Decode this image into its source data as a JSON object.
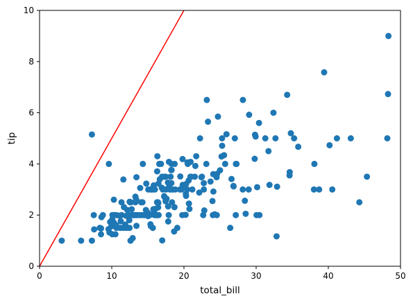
{
  "chart_data": {
    "type": "scatter",
    "xlabel": "total_bill",
    "ylabel": "tip",
    "xlim": [
      0,
      50
    ],
    "ylim": [
      0,
      10
    ],
    "x_ticks": [
      0,
      10,
      20,
      30,
      40,
      50
    ],
    "y_ticks": [
      0,
      2,
      4,
      6,
      8,
      10
    ],
    "grid": false,
    "point_color": "#1f77b4",
    "reference_line": {
      "slope": 0.5,
      "intercept": 0,
      "color": "#ff0000"
    },
    "series": [
      {
        "points": [
          [
            3.07,
            1.0
          ],
          [
            5.75,
            1.0
          ],
          [
            7.25,
            1.0
          ],
          [
            7.25,
            5.15
          ],
          [
            7.51,
            2.0
          ],
          [
            7.56,
            1.44
          ],
          [
            8.35,
            1.5
          ],
          [
            8.51,
            1.25
          ],
          [
            8.52,
            1.48
          ],
          [
            8.58,
            1.92
          ],
          [
            8.77,
            2.0
          ],
          [
            9.55,
            1.45
          ],
          [
            9.6,
            4.0
          ],
          [
            9.68,
            1.32
          ],
          [
            9.78,
            1.73
          ],
          [
            9.94,
            1.56
          ],
          [
            10.07,
            1.83
          ],
          [
            10.07,
            1.25
          ],
          [
            10.09,
            2.0
          ],
          [
            10.27,
            1.71
          ],
          [
            10.29,
            2.6
          ],
          [
            10.33,
            1.67
          ],
          [
            10.33,
            2.0
          ],
          [
            10.34,
            1.66
          ],
          [
            10.34,
            2.0
          ],
          [
            10.51,
            1.25
          ],
          [
            10.59,
            1.61
          ],
          [
            10.63,
            2.0
          ],
          [
            10.65,
            1.5
          ],
          [
            11.02,
            1.98
          ],
          [
            11.17,
            1.5
          ],
          [
            11.24,
            1.76
          ],
          [
            11.35,
            2.5
          ],
          [
            11.38,
            2.0
          ],
          [
            11.59,
            1.5
          ],
          [
            11.61,
            3.39
          ],
          [
            11.69,
            2.31
          ],
          [
            11.87,
            1.63
          ],
          [
            12.02,
            1.97
          ],
          [
            12.03,
            1.5
          ],
          [
            12.16,
            2.2
          ],
          [
            12.26,
            2.0
          ],
          [
            12.43,
            1.8
          ],
          [
            12.46,
            1.5
          ],
          [
            12.48,
            2.52
          ],
          [
            12.54,
            2.5
          ],
          [
            12.6,
            1.0
          ],
          [
            12.66,
            2.5
          ],
          [
            12.69,
            2.0
          ],
          [
            12.74,
            2.01
          ],
          [
            12.76,
            2.23
          ],
          [
            12.9,
            1.1
          ],
          [
            13.0,
            2.0
          ],
          [
            13.03,
            2.0
          ],
          [
            13.13,
            2.0
          ],
          [
            13.27,
            2.5
          ],
          [
            13.28,
            2.72
          ],
          [
            13.37,
            2.0
          ],
          [
            13.39,
            2.61
          ],
          [
            13.42,
            3.48
          ],
          [
            13.42,
            1.58
          ],
          [
            13.51,
            2.0
          ],
          [
            13.81,
            2.0
          ],
          [
            13.94,
            3.06
          ],
          [
            14.07,
            2.5
          ],
          [
            14.15,
            2.0
          ],
          [
            14.26,
            2.5
          ],
          [
            14.31,
            4.0
          ],
          [
            14.48,
            2.0
          ],
          [
            14.52,
            2.0
          ],
          [
            14.73,
            2.2
          ],
          [
            14.78,
            3.23
          ],
          [
            15.01,
            2.09
          ],
          [
            15.04,
            1.96
          ],
          [
            15.06,
            3.0
          ],
          [
            15.36,
            1.64
          ],
          [
            15.38,
            3.0
          ],
          [
            15.42,
            1.57
          ],
          [
            15.48,
            2.02
          ],
          [
            15.53,
            3.0
          ],
          [
            15.69,
            3.0
          ],
          [
            15.69,
            1.5
          ],
          [
            15.77,
            2.23
          ],
          [
            15.81,
            3.16
          ],
          [
            15.95,
            2.0
          ],
          [
            15.98,
            2.03
          ],
          [
            15.98,
            3.0
          ],
          [
            16.0,
            2.0
          ],
          [
            16.04,
            2.24
          ],
          [
            16.21,
            2.0
          ],
          [
            16.27,
            2.5
          ],
          [
            16.29,
            3.71
          ],
          [
            16.31,
            2.0
          ],
          [
            16.32,
            4.3
          ],
          [
            16.4,
            2.5
          ],
          [
            16.43,
            2.3
          ],
          [
            16.45,
            2.47
          ],
          [
            16.47,
            3.23
          ],
          [
            16.49,
            2.0
          ],
          [
            16.58,
            4.0
          ],
          [
            16.66,
            3.4
          ],
          [
            16.82,
            4.0
          ],
          [
            16.93,
            3.07
          ],
          [
            16.97,
            3.5
          ],
          [
            16.99,
            1.01
          ],
          [
            17.07,
            3.0
          ],
          [
            17.26,
            2.74
          ],
          [
            17.29,
            2.71
          ],
          [
            17.31,
            3.5
          ],
          [
            17.46,
            2.54
          ],
          [
            17.47,
            3.5
          ],
          [
            17.51,
            3.0
          ],
          [
            17.59,
            2.64
          ],
          [
            17.78,
            3.27
          ],
          [
            17.81,
            2.34
          ],
          [
            17.82,
            1.75
          ],
          [
            17.89,
            2.0
          ],
          [
            17.92,
            4.08
          ],
          [
            17.92,
            3.08
          ],
          [
            18.04,
            3.0
          ],
          [
            18.15,
            3.5
          ],
          [
            18.24,
            3.76
          ],
          [
            18.26,
            3.25
          ],
          [
            18.28,
            4.0
          ],
          [
            18.29,
            3.76
          ],
          [
            18.29,
            3.0
          ],
          [
            18.35,
            2.5
          ],
          [
            18.43,
            3.0
          ],
          [
            18.64,
            1.36
          ],
          [
            18.69,
            2.31
          ],
          [
            18.71,
            4.0
          ],
          [
            18.78,
            3.0
          ],
          [
            19.08,
            1.5
          ],
          [
            19.44,
            3.0
          ],
          [
            19.49,
            3.51
          ],
          [
            19.65,
            3.0
          ],
          [
            19.77,
            2.0
          ],
          [
            19.81,
            4.19
          ],
          [
            19.82,
            3.18
          ],
          [
            20.08,
            3.15
          ],
          [
            20.23,
            2.01
          ],
          [
            20.27,
            2.83
          ],
          [
            20.29,
            2.75
          ],
          [
            20.29,
            3.21
          ],
          [
            20.45,
            3.0
          ],
          [
            20.49,
            4.06
          ],
          [
            20.53,
            4.0
          ],
          [
            20.65,
            3.35
          ],
          [
            20.69,
            2.45
          ],
          [
            20.76,
            2.24
          ],
          [
            20.9,
            3.5
          ],
          [
            20.92,
            4.08
          ],
          [
            21.01,
            3.5
          ],
          [
            21.16,
            3.0
          ],
          [
            21.5,
            3.5
          ],
          [
            21.58,
            3.92
          ],
          [
            21.7,
            4.3
          ],
          [
            22.12,
            2.88
          ],
          [
            22.23,
            5.0
          ],
          [
            22.42,
            3.48
          ],
          [
            22.49,
            3.5
          ],
          [
            22.67,
            2.0
          ],
          [
            22.75,
            3.25
          ],
          [
            22.76,
            3.0
          ],
          [
            22.82,
            2.18
          ],
          [
            23.1,
            4.0
          ],
          [
            23.17,
            6.5
          ],
          [
            23.33,
            5.65
          ],
          [
            23.68,
            3.31
          ],
          [
            23.95,
            2.55
          ],
          [
            24.01,
            2.0
          ],
          [
            24.06,
            3.6
          ],
          [
            24.08,
            2.92
          ],
          [
            24.27,
            2.03
          ],
          [
            24.52,
            3.48
          ],
          [
            24.55,
            2.0
          ],
          [
            24.59,
            3.61
          ],
          [
            24.71,
            5.85
          ],
          [
            25.0,
            3.75
          ],
          [
            25.21,
            4.29
          ],
          [
            25.28,
            5.0
          ],
          [
            25.29,
            4.71
          ],
          [
            25.56,
            4.34
          ],
          [
            25.71,
            4.0
          ],
          [
            25.89,
            5.16
          ],
          [
            26.41,
            1.5
          ],
          [
            26.59,
            3.41
          ],
          [
            26.86,
            3.14
          ],
          [
            26.88,
            3.12
          ],
          [
            27.05,
            5.0
          ],
          [
            27.18,
            2.0
          ],
          [
            27.2,
            4.0
          ],
          [
            27.28,
            4.0
          ],
          [
            28.15,
            3.0
          ],
          [
            28.17,
            6.5
          ],
          [
            28.44,
            2.56
          ],
          [
            28.55,
            2.05
          ],
          [
            28.97,
            3.0
          ],
          [
            29.03,
            5.92
          ],
          [
            29.8,
            4.2
          ],
          [
            29.85,
            5.14
          ],
          [
            29.93,
            5.07
          ],
          [
            30.06,
            2.0
          ],
          [
            30.14,
            3.09
          ],
          [
            30.4,
            5.6
          ],
          [
            30.46,
            2.0
          ],
          [
            31.27,
            5.0
          ],
          [
            31.71,
            4.5
          ],
          [
            31.85,
            3.18
          ],
          [
            32.4,
            6.0
          ],
          [
            32.68,
            5.0
          ],
          [
            32.83,
            1.17
          ],
          [
            32.9,
            3.11
          ],
          [
            34.3,
            6.7
          ],
          [
            34.63,
            3.55
          ],
          [
            34.65,
            3.68
          ],
          [
            34.81,
            5.2
          ],
          [
            35.26,
            5.0
          ],
          [
            35.83,
            4.67
          ],
          [
            38.01,
            3.0
          ],
          [
            38.07,
            4.0
          ],
          [
            38.73,
            3.0
          ],
          [
            39.42,
            7.58
          ],
          [
            40.17,
            4.73
          ],
          [
            40.55,
            3.0
          ],
          [
            41.19,
            5.0
          ],
          [
            43.11,
            5.0
          ],
          [
            44.3,
            2.5
          ],
          [
            45.35,
            3.5
          ],
          [
            48.17,
            5.0
          ],
          [
            48.27,
            6.73
          ],
          [
            48.33,
            9.0
          ]
        ]
      }
    ]
  }
}
